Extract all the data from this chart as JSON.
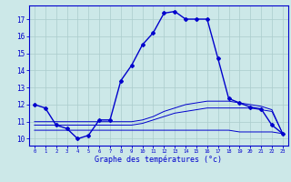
{
  "xlabel": "Graphe des températures (°c)",
  "background_color": "#cce8e8",
  "grid_color": "#aacccc",
  "line_color": "#0000cc",
  "x_ticks": [
    0,
    1,
    2,
    3,
    4,
    5,
    6,
    7,
    8,
    9,
    10,
    11,
    12,
    13,
    14,
    15,
    16,
    17,
    18,
    19,
    20,
    21,
    22,
    23
  ],
  "y_ticks": [
    10,
    11,
    12,
    13,
    14,
    15,
    16,
    17
  ],
  "ylim": [
    9.6,
    17.8
  ],
  "xlim": [
    -0.5,
    23.5
  ],
  "line1_x": [
    0,
    1,
    2,
    3,
    4,
    5,
    6,
    7,
    8,
    9,
    10,
    11,
    12,
    13,
    14,
    15,
    16,
    17,
    18,
    19,
    20,
    21,
    22,
    23
  ],
  "line1_y": [
    12.0,
    11.8,
    10.8,
    10.6,
    10.0,
    10.2,
    11.1,
    11.1,
    13.4,
    14.3,
    15.5,
    16.2,
    17.35,
    17.45,
    17.0,
    17.0,
    17.0,
    14.7,
    12.35,
    12.1,
    11.85,
    11.75,
    10.8,
    10.3
  ],
  "line2_x": [
    0,
    1,
    2,
    3,
    4,
    5,
    6,
    7,
    8,
    9,
    10,
    11,
    12,
    13,
    14,
    15,
    16,
    17,
    18,
    19,
    20,
    21,
    22,
    23
  ],
  "line2_y": [
    10.5,
    10.5,
    10.5,
    10.5,
    10.5,
    10.5,
    10.5,
    10.5,
    10.5,
    10.5,
    10.5,
    10.5,
    10.5,
    10.5,
    10.5,
    10.5,
    10.5,
    10.5,
    10.5,
    10.4,
    10.4,
    10.4,
    10.4,
    10.3
  ],
  "line3_x": [
    0,
    1,
    2,
    3,
    4,
    5,
    6,
    7,
    8,
    9,
    10,
    11,
    12,
    13,
    14,
    15,
    16,
    17,
    18,
    19,
    20,
    21,
    22,
    23
  ],
  "line3_y": [
    10.8,
    10.8,
    10.8,
    10.8,
    10.8,
    10.8,
    10.8,
    10.8,
    10.8,
    10.8,
    10.9,
    11.1,
    11.3,
    11.5,
    11.6,
    11.7,
    11.8,
    11.8,
    11.8,
    11.8,
    11.8,
    11.7,
    11.6,
    10.3
  ],
  "line4_x": [
    0,
    1,
    2,
    3,
    4,
    5,
    6,
    7,
    8,
    9,
    10,
    11,
    12,
    13,
    14,
    15,
    16,
    17,
    18,
    19,
    20,
    21,
    22,
    23
  ],
  "line4_y": [
    11.0,
    11.0,
    11.0,
    11.0,
    11.0,
    11.0,
    11.0,
    11.0,
    11.0,
    11.0,
    11.1,
    11.3,
    11.6,
    11.8,
    12.0,
    12.1,
    12.2,
    12.2,
    12.2,
    12.1,
    12.0,
    11.9,
    11.7,
    10.3
  ]
}
